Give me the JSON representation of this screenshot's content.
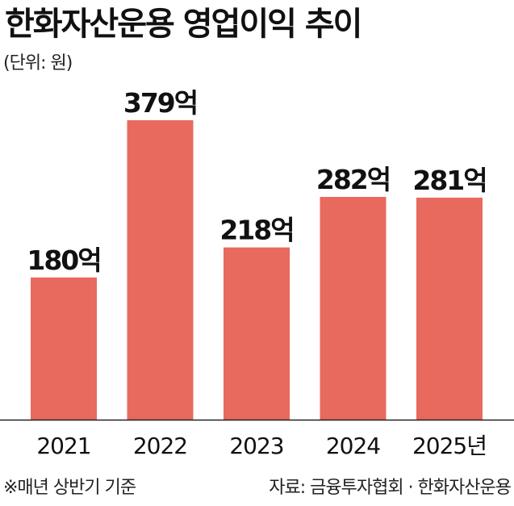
{
  "header": {
    "title": "한화자산운용 영업이익 추이",
    "unit_note": "(단위: 원)"
  },
  "footer": {
    "note": "※매년 상반기 기준",
    "source": "자료: 금융투자협회 · 한화자산운용"
  },
  "colors": {
    "bar": "#e8695e",
    "text": "#111111",
    "baseline": "#222222"
  },
  "chart_data": {
    "type": "bar",
    "title": "한화자산운용 영업이익 추이",
    "xlabel": "",
    "ylabel": "",
    "categories": [
      "2021",
      "2022",
      "2023",
      "2024",
      "2025년"
    ],
    "values": [
      180,
      379,
      218,
      282,
      281
    ],
    "data_labels": [
      "180억",
      "379억",
      "218억",
      "282억",
      "281억"
    ],
    "ylim": [
      0,
      379
    ],
    "grid": false,
    "legend": "none"
  }
}
